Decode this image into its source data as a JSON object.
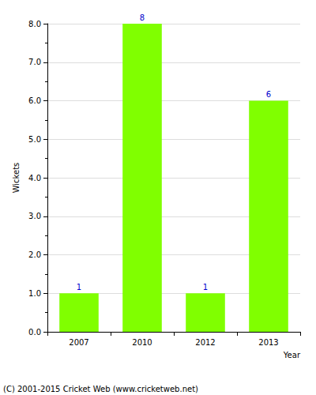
{
  "chart_data": {
    "type": "bar",
    "x_label": "Year",
    "y_label": "Wickets",
    "categories": [
      "2007",
      "2010",
      "2012",
      "2013"
    ],
    "values": [
      1,
      8,
      1,
      6
    ],
    "color": "#80ff00",
    "ylim": [
      0,
      8
    ],
    "yticks": [
      {
        "value": 0,
        "label": "0.0"
      },
      {
        "value": 1,
        "label": "1.0"
      },
      {
        "value": 2,
        "label": "2.0"
      },
      {
        "value": 3,
        "label": "3.0"
      },
      {
        "value": 4,
        "label": "4.0"
      },
      {
        "value": 5,
        "label": "5.0"
      },
      {
        "value": 6,
        "label": "6.0"
      },
      {
        "value": 7,
        "label": "7.0"
      },
      {
        "value": 8,
        "label": "8.0"
      }
    ],
    "grid": true,
    "data_labels": true,
    "annotations": [
      "(C) 2001-2015 Cricket Web (www.cricketweb.net)"
    ]
  }
}
